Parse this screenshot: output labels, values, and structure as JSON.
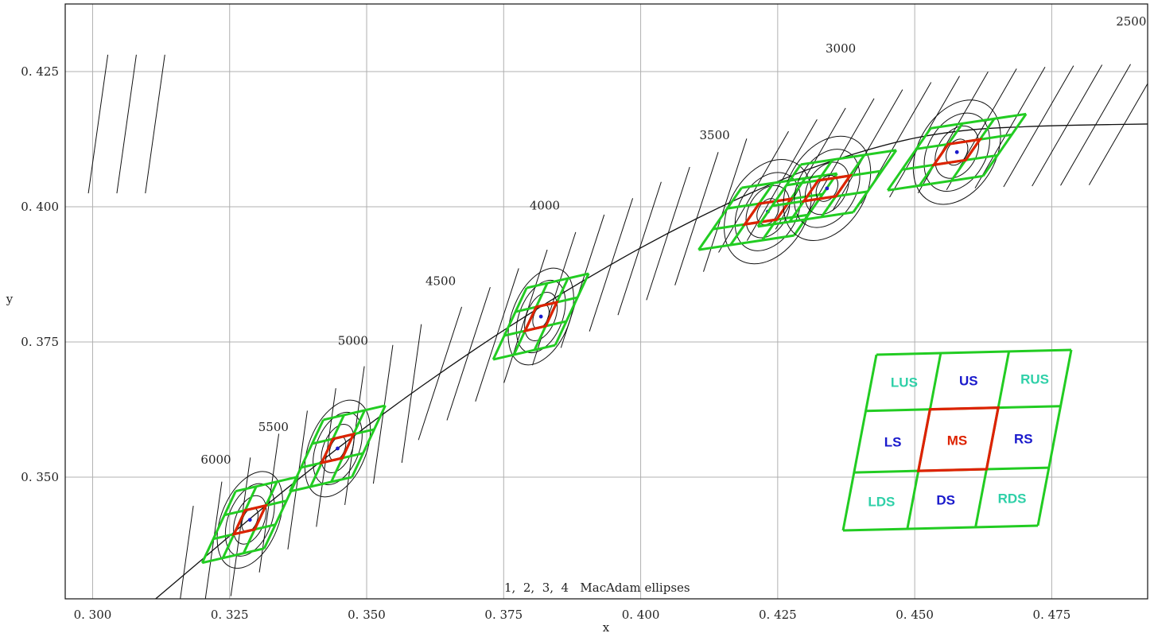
{
  "chart_data": {
    "type": "scatter",
    "title": "",
    "xlabel": "x",
    "ylabel": "y",
    "xlim": [
      0.295,
      0.4925
    ],
    "ylim": [
      0.3275,
      0.4375
    ],
    "x_ticks": [
      0.3,
      0.325,
      0.35,
      0.375,
      0.4,
      0.425,
      0.45,
      0.475
    ],
    "y_ticks": [
      0.35,
      0.375,
      0.4,
      0.425
    ],
    "x_tick_labels": [
      "0. 300",
      "0. 325",
      "0. 350",
      "0. 375",
      "0. 400",
      "0. 425",
      "0. 450",
      "0. 475"
    ],
    "y_tick_labels": [
      "0. 350",
      "0. 375",
      "0. 400",
      "0. 425"
    ],
    "grid": true,
    "planckian_locus": [
      [
        0.3115,
        0.3275
      ],
      [
        0.32,
        0.3348
      ],
      [
        0.33,
        0.3434
      ],
      [
        0.34,
        0.3516
      ],
      [
        0.35,
        0.3594
      ],
      [
        0.36,
        0.3668
      ],
      [
        0.37,
        0.3738
      ],
      [
        0.38,
        0.3804
      ],
      [
        0.39,
        0.3866
      ],
      [
        0.4,
        0.3924
      ],
      [
        0.41,
        0.3977
      ],
      [
        0.42,
        0.4025
      ],
      [
        0.43,
        0.4067
      ],
      [
        0.44,
        0.4101
      ],
      [
        0.45,
        0.4127
      ],
      [
        0.46,
        0.4142
      ],
      [
        0.47,
        0.4148
      ],
      [
        0.48,
        0.4151
      ],
      [
        0.4925,
        0.4153
      ]
    ],
    "cct_labels": [
      {
        "text": "6000",
        "x": 0.3225,
        "y": 0.3525
      },
      {
        "text": "5500",
        "x": 0.333,
        "y": 0.3585
      },
      {
        "text": "5000",
        "x": 0.3475,
        "y": 0.3745
      },
      {
        "text": "4500",
        "x": 0.3635,
        "y": 0.3855
      },
      {
        "text": "4000",
        "x": 0.3825,
        "y": 0.3995
      },
      {
        "text": "3500",
        "x": 0.4135,
        "y": 0.4125
      },
      {
        "text": "3000",
        "x": 0.4365,
        "y": 0.4285
      },
      {
        "text": "2500",
        "x": 0.4895,
        "y": 0.4335
      }
    ],
    "ellipse_centers": [
      [
        0.3287,
        0.3421
      ],
      [
        0.3447,
        0.3553
      ],
      [
        0.3818,
        0.3797
      ],
      [
        0.4232,
        0.3991
      ],
      [
        0.434,
        0.4034
      ],
      [
        0.4577,
        0.4101
      ]
    ],
    "ellipse_rings": [
      1,
      2,
      3,
      4
    ],
    "caption": "1,  2,  3,  4   MacAdam ellipses",
    "colors": {
      "grid": "#b0b0b0",
      "lines": "#111111",
      "green": "#22cc22",
      "red": "#dd2200",
      "blue": "#1a1acc",
      "teal": "#2fd0a8"
    },
    "legend": {
      "zones": [
        {
          "label": "LUS",
          "color": "#2fd0a8"
        },
        {
          "label": "US",
          "color": "#1a1acc"
        },
        {
          "label": "RUS",
          "color": "#2fd0a8"
        },
        {
          "label": "LS",
          "color": "#1a1acc"
        },
        {
          "label": "MS",
          "color": "#dd2200"
        },
        {
          "label": "RS",
          "color": "#1a1acc"
        },
        {
          "label": "LDS",
          "color": "#2fd0a8"
        },
        {
          "label": "DS",
          "color": "#1a1acc"
        },
        {
          "label": "RDS",
          "color": "#2fd0a8"
        }
      ]
    }
  }
}
